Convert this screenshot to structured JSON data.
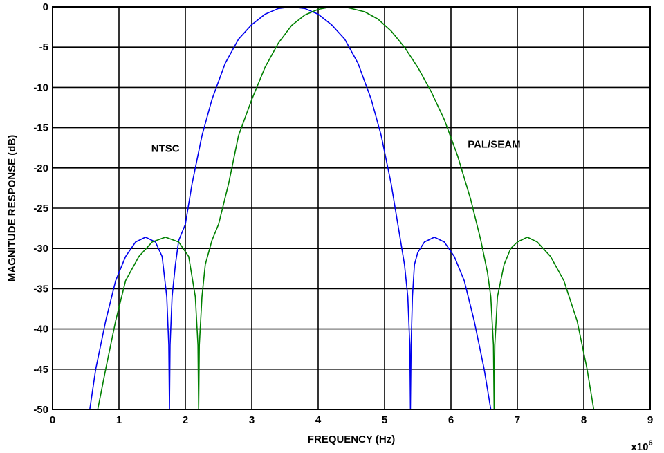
{
  "chart_data": {
    "type": "line",
    "xlabel": "FREQUENCY (Hz)",
    "ylabel": "MAGNITUDE RESPONSE (dB)",
    "x_multiplier": "x10",
    "x_multiplier_exp": "6",
    "xlim": [
      0,
      9
    ],
    "ylim": [
      -50,
      0
    ],
    "x_ticks": [
      0,
      1,
      2,
      3,
      4,
      5,
      6,
      7,
      8,
      9
    ],
    "y_ticks": [
      0,
      -5,
      -10,
      -15,
      -20,
      -25,
      -30,
      -35,
      -40,
      -45,
      -50
    ],
    "grid": true,
    "series": [
      {
        "name": "NTSC",
        "color": "#0000ee",
        "x": [
          0.56,
          0.65,
          0.8,
          0.95,
          1.1,
          1.25,
          1.4,
          1.55,
          1.65,
          1.72,
          1.75,
          1.76,
          1.77,
          1.8,
          1.85,
          1.9,
          2.0,
          2.1,
          2.25,
          2.4,
          2.6,
          2.8,
          3.0,
          3.2,
          3.4,
          3.6,
          3.8,
          4.0,
          4.2,
          4.4,
          4.6,
          4.8,
          4.95,
          5.1,
          5.2,
          5.3,
          5.35,
          5.38,
          5.39,
          5.4,
          5.42,
          5.45,
          5.5,
          5.6,
          5.75,
          5.9,
          6.05,
          6.2,
          6.35,
          6.5,
          6.6
        ],
        "y": [
          -50,
          -45,
          -39,
          -34,
          -31,
          -29.2,
          -28.6,
          -29.2,
          -31,
          -36,
          -42,
          -50,
          -42,
          -36,
          -32,
          -29,
          -27,
          -22,
          -16,
          -11.5,
          -7,
          -4,
          -2.2,
          -0.9,
          -0.2,
          0,
          -0.2,
          -0.9,
          -2.2,
          -4,
          -7,
          -11.5,
          -16,
          -22,
          -27,
          -32,
          -36,
          -42,
          -50,
          -42,
          -36,
          -32,
          -30.5,
          -29.2,
          -28.6,
          -29.2,
          -31,
          -34,
          -39,
          -45,
          -50
        ]
      },
      {
        "name": "PAL/SEAM",
        "color": "#008000",
        "x": [
          0.68,
          0.8,
          0.95,
          1.1,
          1.3,
          1.5,
          1.7,
          1.9,
          2.05,
          2.15,
          2.19,
          2.2,
          2.21,
          2.25,
          2.3,
          2.4,
          2.5,
          2.65,
          2.8,
          3.0,
          3.2,
          3.4,
          3.6,
          3.8,
          4.0,
          4.2,
          4.45,
          4.7,
          4.9,
          5.1,
          5.3,
          5.5,
          5.7,
          5.9,
          6.1,
          6.3,
          6.45,
          6.55,
          6.6,
          6.64,
          6.65,
          6.66,
          6.7,
          6.8,
          6.9,
          7.0,
          7.15,
          7.3,
          7.5,
          7.7,
          7.9,
          8.05,
          8.15
        ],
        "y": [
          -50,
          -45,
          -39,
          -34,
          -31,
          -29.2,
          -28.6,
          -29.2,
          -31,
          -36,
          -42,
          -50,
          -42,
          -36,
          -32,
          -29,
          -27,
          -22,
          -16,
          -11.5,
          -7.5,
          -4.5,
          -2.3,
          -1,
          -0.3,
          0,
          -0.1,
          -0.6,
          -1.5,
          -3,
          -5,
          -7.5,
          -10.5,
          -14,
          -18.5,
          -24,
          -29,
          -33,
          -36,
          -42,
          -50,
          -42,
          -36,
          -32,
          -30,
          -29.2,
          -28.6,
          -29.2,
          -31,
          -34,
          -39,
          -45,
          -50
        ]
      }
    ],
    "annotations": [
      {
        "text": "NTSC",
        "x": 1.7,
        "y": -18
      },
      {
        "text": "PAL/SEAM",
        "x": 6.65,
        "y": -17.5
      }
    ]
  }
}
